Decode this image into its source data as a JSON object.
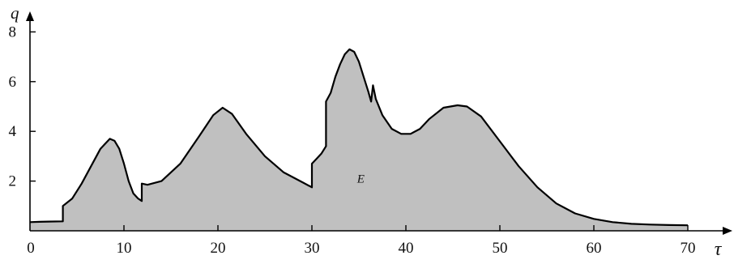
{
  "chart_data": {
    "type": "area",
    "title": "",
    "xlabel": "τ",
    "ylabel": "q",
    "xlim": [
      0,
      75
    ],
    "ylim": [
      0,
      8.5
    ],
    "x_ticks": [
      0,
      10,
      20,
      30,
      40,
      50,
      60,
      70
    ],
    "x_tick_labels": [
      "0",
      "10",
      "20",
      "30",
      "40",
      "50",
      "60",
      "70"
    ],
    "y_ticks": [
      2,
      4,
      6,
      8
    ],
    "y_tick_labels": [
      "2",
      "4",
      "6",
      "8"
    ],
    "grid": false,
    "legend": "none",
    "fill_color": "#c0c0c0",
    "line_color": "#000000",
    "annotations": [
      {
        "text": "E",
        "x": 35.2,
        "y": 2.1
      }
    ],
    "series": [
      {
        "x": [
          0,
          1,
          2,
          3.5,
          3.5,
          4.5,
          5.5,
          6.5,
          7.5,
          8.5,
          9,
          9.5,
          10,
          10.5,
          11,
          11.5,
          11.9,
          11.9,
          12.5,
          14,
          16,
          18,
          19.5,
          20.5,
          21.5,
          23,
          25,
          27,
          29,
          30,
          30,
          30.5,
          31,
          31.5,
          31.5,
          32,
          32.5,
          33,
          33.5,
          34,
          34.5,
          35,
          35.5,
          36,
          36.3,
          36.5,
          36.8,
          37.5,
          38.5,
          39.5,
          40.5,
          41.5,
          42.5,
          44,
          45.5,
          46.5,
          48,
          50,
          52,
          54,
          56,
          58,
          60,
          62,
          64,
          66,
          68,
          70
        ],
        "y": [
          0.35,
          0.36,
          0.37,
          0.38,
          1.0,
          1.3,
          1.9,
          2.6,
          3.3,
          3.7,
          3.62,
          3.3,
          2.7,
          2.0,
          1.5,
          1.3,
          1.2,
          1.9,
          1.85,
          2.0,
          2.7,
          3.8,
          4.65,
          4.95,
          4.7,
          3.9,
          3.0,
          2.35,
          1.95,
          1.75,
          2.7,
          2.9,
          3.1,
          3.4,
          5.2,
          5.55,
          6.2,
          6.7,
          7.1,
          7.3,
          7.2,
          6.8,
          6.2,
          5.6,
          5.2,
          5.85,
          5.3,
          4.65,
          4.1,
          3.9,
          3.9,
          4.1,
          4.5,
          4.95,
          5.05,
          5.0,
          4.6,
          3.6,
          2.6,
          1.75,
          1.1,
          0.7,
          0.48,
          0.35,
          0.28,
          0.25,
          0.23,
          0.22
        ]
      }
    ]
  }
}
